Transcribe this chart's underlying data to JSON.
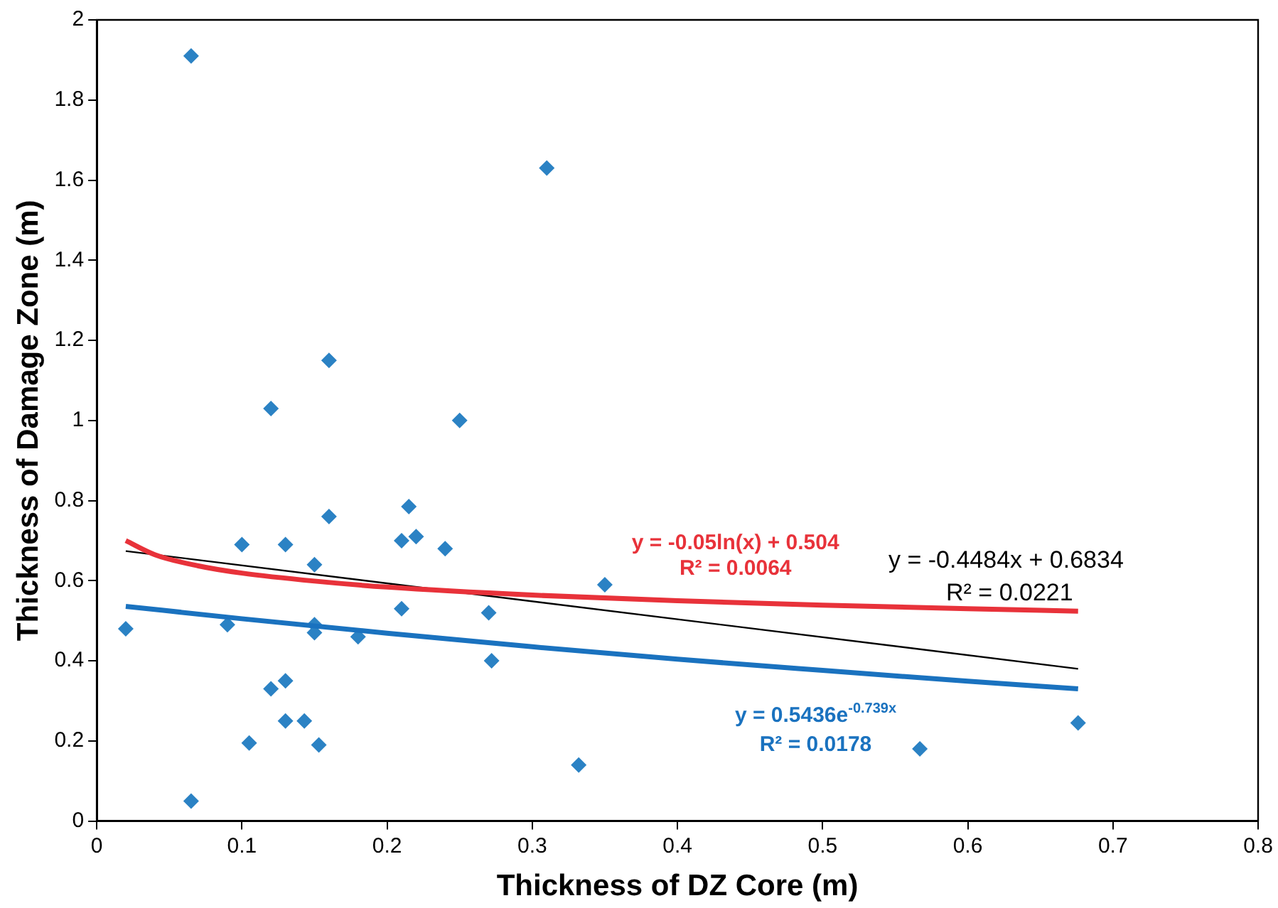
{
  "chart_data": {
    "type": "scatter",
    "xlabel": "Thickness of DZ Core (m)",
    "ylabel": "Thickness of Damage Zone (m)",
    "xlim": [
      0,
      0.8
    ],
    "xticks": [
      0,
      0.1,
      0.2,
      0.3,
      0.4,
      0.5,
      0.6,
      0.7,
      0.8
    ],
    "ylim": [
      0,
      2
    ],
    "yticks": [
      0,
      0.2,
      0.4,
      0.6,
      0.8,
      1,
      1.2,
      1.4,
      1.6,
      1.8,
      2
    ],
    "grid": false,
    "legend": false,
    "series": [
      {
        "type": "scatter",
        "marker": "diamond",
        "color": "#2b82c4",
        "x": [
          0.02,
          0.065,
          0.065,
          0.09,
          0.1,
          0.105,
          0.12,
          0.12,
          0.13,
          0.13,
          0.13,
          0.143,
          0.15,
          0.15,
          0.15,
          0.153,
          0.16,
          0.16,
          0.18,
          0.21,
          0.21,
          0.215,
          0.22,
          0.24,
          0.25,
          0.27,
          0.272,
          0.31,
          0.332,
          0.35,
          0.567,
          0.676
        ],
        "values": [
          0.48,
          1.91,
          0.05,
          0.49,
          0.69,
          0.195,
          1.03,
          0.33,
          0.69,
          0.35,
          0.25,
          0.25,
          0.64,
          0.49,
          0.47,
          0.19,
          1.15,
          0.76,
          0.46,
          0.7,
          0.53,
          0.785,
          0.71,
          0.68,
          1.0,
          0.52,
          0.4,
          1.63,
          0.14,
          0.59,
          0.18,
          0.245
        ]
      },
      {
        "type": "line",
        "marker": "none",
        "color": "#e8323a",
        "x": [
          0.02,
          0.04,
          0.07,
          0.1,
          0.15,
          0.2,
          0.3,
          0.4,
          0.5,
          0.6,
          0.676
        ],
        "values": [
          0.7,
          0.665,
          0.637,
          0.619,
          0.599,
          0.584,
          0.564,
          0.55,
          0.539,
          0.53,
          0.524
        ]
      },
      {
        "type": "line",
        "marker": "none",
        "color": "#000000",
        "x": [
          0.02,
          0.676
        ],
        "values": [
          0.674,
          0.38
        ]
      },
      {
        "type": "line",
        "marker": "none",
        "color": "#1a72bf",
        "x": [
          0.02,
          0.1,
          0.2,
          0.3,
          0.4,
          0.5,
          0.6,
          0.676
        ],
        "values": [
          0.536,
          0.505,
          0.469,
          0.435,
          0.404,
          0.376,
          0.349,
          0.33
        ]
      }
    ],
    "annotations": [
      "y = -0.05ln(x) + 0.504",
      "R² = 0.0064",
      "y = -0.4484x + 0.6834",
      "R² = 0.0221",
      "y = 0.5436e$^{-0.739x}$",
      "R² = 0.0178"
    ]
  }
}
